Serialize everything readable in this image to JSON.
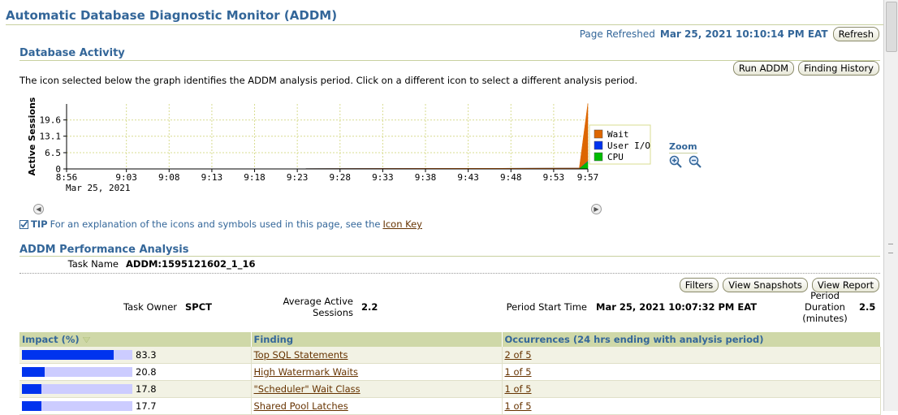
{
  "page": {
    "title": "Automatic Database Diagnostic Monitor (ADDM)",
    "refreshed_label": "Page Refreshed",
    "refreshed_value": "Mar 25, 2021 10:10:14 PM EAT",
    "refresh_button": "Refresh"
  },
  "activity": {
    "heading": "Database Activity",
    "run_addm_button": "Run ADDM",
    "finding_history_button": "Finding History",
    "instructions": "The icon selected below the graph identifies the ADDM analysis period. Click on a different icon to select a different analysis period.",
    "zoom_label": "Zoom",
    "tip_label": "TIP",
    "tip_text": "For an explanation of the icons and symbols used in this page, see the",
    "tip_link": "Icon Key"
  },
  "chart_data": {
    "type": "area",
    "ylabel": "Active Sessions",
    "y_ticks": [
      "0",
      "6.5",
      "13.1",
      "19.6"
    ],
    "ylim": [
      0,
      26
    ],
    "x_ticks": [
      "8:56",
      "9:03",
      "9:08",
      "9:13",
      "9:18",
      "9:23",
      "9:28",
      "9:33",
      "9:38",
      "9:43",
      "9:48",
      "9:53",
      "9:57"
    ],
    "x_sublabel": "Mar 25, 2021",
    "legend": [
      {
        "name": "Wait",
        "color": "#dd6600"
      },
      {
        "name": "User I/O",
        "color": "#0033ee"
      },
      {
        "name": "CPU",
        "color": "#00bb00"
      }
    ],
    "legend_position": "right",
    "grid": true,
    "series": [
      {
        "name": "CPU",
        "x": [
          "9:24",
          "9:56",
          "9:57"
        ],
        "values": [
          0.1,
          0.3,
          3.0
        ]
      },
      {
        "name": "User I/O",
        "x": [
          "9:24",
          "9:56",
          "9:57"
        ],
        "values": [
          0,
          0,
          0.2
        ]
      },
      {
        "name": "Wait",
        "x": [
          "9:24",
          "9:56",
          "9:57"
        ],
        "values": [
          0,
          0,
          23.0
        ]
      }
    ]
  },
  "analysis": {
    "heading": "ADDM Performance Analysis",
    "task_name_label": "Task Name",
    "task_name_value": "ADDM:1595121602_1_16",
    "filters_button": "Filters",
    "view_snapshots_button": "View Snapshots",
    "view_report_button": "View Report",
    "task_owner_label": "Task Owner",
    "task_owner_value": "SPCT",
    "avg_sessions_label": "Average Active Sessions",
    "avg_sessions_value": "2.2",
    "period_start_label": "Period Start Time",
    "period_start_value": "Mar 25, 2021 10:07:32 PM EAT",
    "period_duration_label": "Period Duration (minutes)",
    "period_duration_value": "2.5"
  },
  "findings": {
    "columns": [
      "Impact (%)",
      "Finding",
      "Occurrences (24 hrs ending with analysis period)"
    ],
    "rows": [
      {
        "impact": 83.3,
        "impact_text": "83.3",
        "finding": "Top SQL Statements",
        "occurrences": "2 of 5"
      },
      {
        "impact": 20.8,
        "impact_text": "20.8",
        "finding": "High Watermark Waits",
        "occurrences": "1 of 5"
      },
      {
        "impact": 17.8,
        "impact_text": "17.8",
        "finding": "\"Scheduler\" Wait Class",
        "occurrences": "1 of 5"
      },
      {
        "impact": 17.7,
        "impact_text": "17.7",
        "finding": "Shared Pool Latches",
        "occurrences": "1 of 5"
      }
    ]
  }
}
